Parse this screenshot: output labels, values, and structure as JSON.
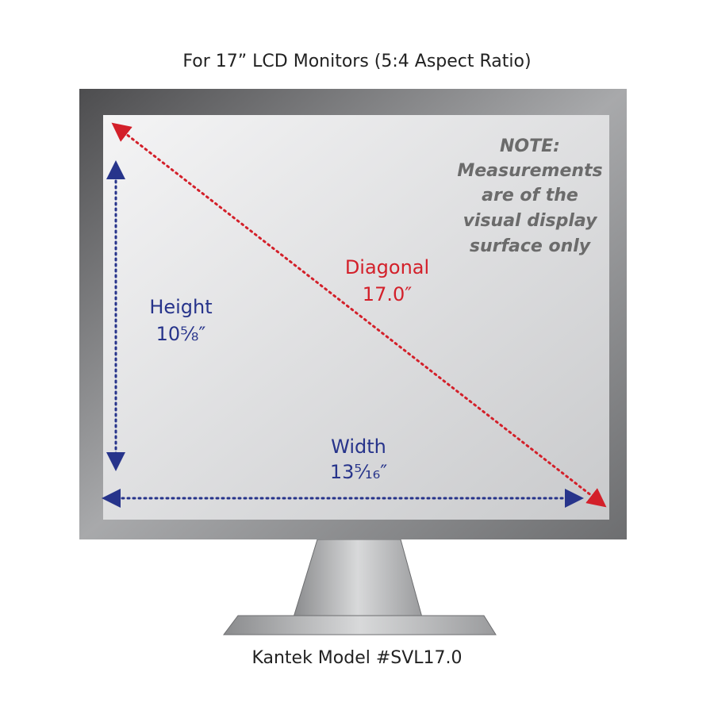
{
  "header": {
    "title": "For 17” LCD Monitors (5:4 Aspect Ratio)"
  },
  "note": {
    "lines": [
      "NOTE:",
      "Measurements",
      "are of the",
      "visual display",
      "surface only"
    ]
  },
  "diagonal": {
    "label": "Diagonal",
    "value": "17.0″"
  },
  "height": {
    "label": "Height",
    "value": "10⅝″"
  },
  "width": {
    "label": "Width",
    "value": "13⁵⁄₁₆″"
  },
  "footer": {
    "caption": "Kantek Model #SVL17.0"
  }
}
